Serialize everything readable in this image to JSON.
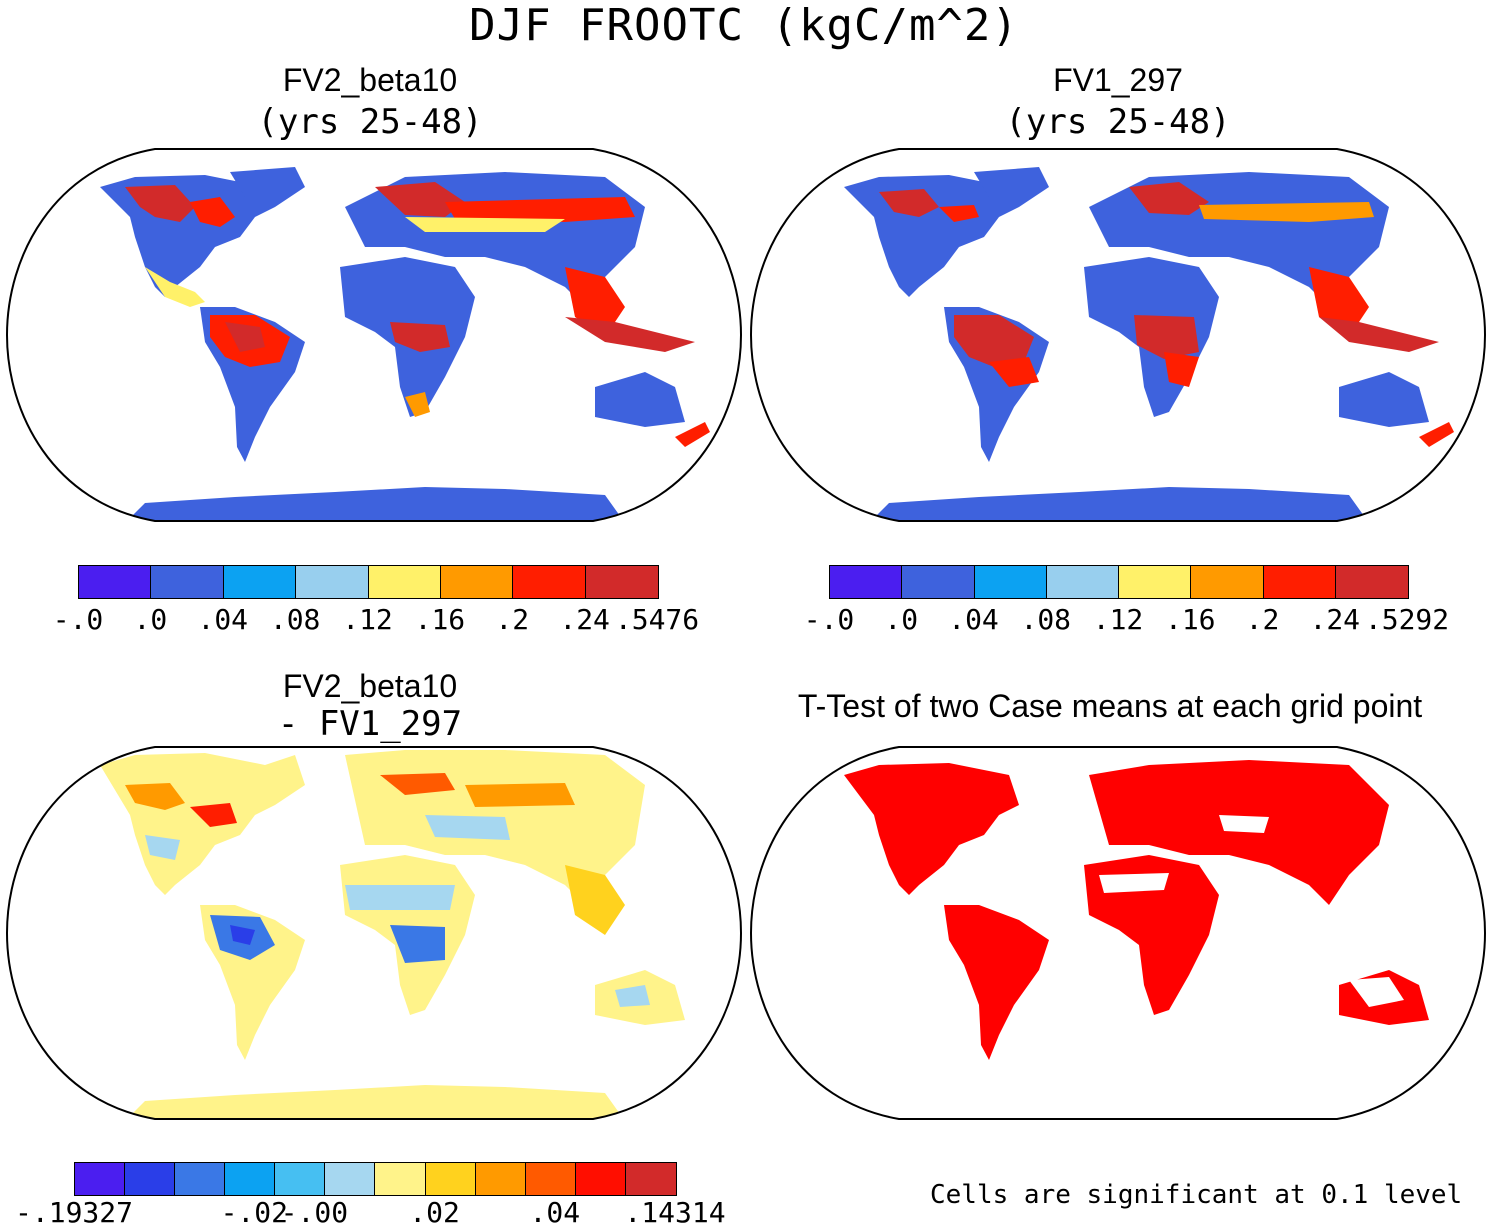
{
  "main_title": "DJF FROOTC (kgC/m^2)",
  "panels": [
    {
      "title": "FV2_beta10",
      "subtitle": "(yrs 25-48)"
    },
    {
      "title": "FV1_297",
      "subtitle": "(yrs 25-48)"
    },
    {
      "title": "FV2_beta10",
      "subtitle": "- FV1_297"
    },
    {
      "title": "T-Test of two Case means at each grid point",
      "subtitle": ""
    }
  ],
  "colorbars": [
    {
      "colors": [
        "#4b1ef0",
        "#3e62dd",
        "#0ca2f2",
        "#98cfee",
        "#fff169",
        "#ff9a00",
        "#ff1e00",
        "#d22a2a"
      ],
      "labels": [
        "-.0",
        ".0",
        ".04",
        ".08",
        ".12",
        ".16",
        ".2",
        ".24",
        ".5476"
      ]
    },
    {
      "colors": [
        "#4b1ef0",
        "#3e62dd",
        "#0ca2f2",
        "#98cfee",
        "#fff169",
        "#ff9a00",
        "#ff1e00",
        "#d22a2a"
      ],
      "labels": [
        "-.0",
        ".0",
        ".04",
        ".08",
        ".12",
        ".16",
        ".2",
        ".24",
        ".5292"
      ]
    },
    {
      "colors": [
        "#4b1ef0",
        "#2a3ee8",
        "#3a78e6",
        "#0ca2f2",
        "#46bff2",
        "#a6d7f0",
        "#fff38a",
        "#ffd21e",
        "#ff9a00",
        "#ff5a00",
        "#ff0e00",
        "#d22a2a"
      ],
      "labels": [
        "-.19327",
        "",
        "",
        "-.02",
        "-.00",
        "",
        ".02",
        "",
        ".04",
        "",
        ".14314"
      ]
    }
  ],
  "significance_note": "Cells are significant at 0.1 level",
  "colors": {
    "land_blue": "#3e62dd",
    "red": "#ff1e00",
    "dark_red": "#d22a2a",
    "yellow": "#fff38a",
    "significant": "#ff0000"
  }
}
